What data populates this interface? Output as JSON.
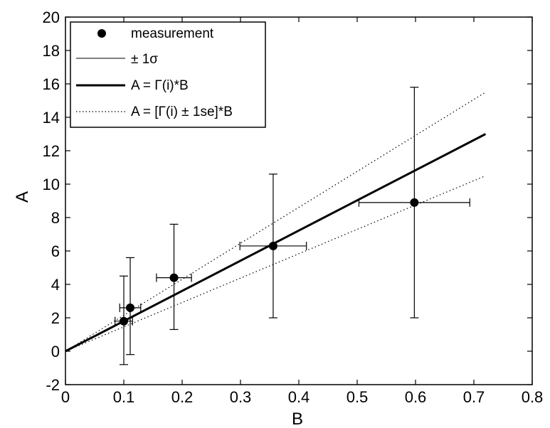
{
  "chart_data": {
    "type": "scatter",
    "title": "",
    "xlabel": "B",
    "ylabel": "A",
    "xlim": [
      0,
      0.8
    ],
    "ylim": [
      -2,
      20
    ],
    "xticks": [
      0,
      0.1,
      0.2,
      0.3,
      0.4,
      0.5,
      0.6,
      0.7,
      0.8
    ],
    "xtick_labels": [
      "0",
      "0.1",
      "0.2",
      "0.3",
      "0.4",
      "0.5",
      "0.6",
      "0.7",
      "0.8"
    ],
    "yticks": [
      -2,
      0,
      2,
      4,
      6,
      8,
      10,
      12,
      14,
      16,
      18,
      20
    ],
    "ytick_labels": [
      "-2",
      "0",
      "2",
      "4",
      "6",
      "8",
      "10",
      "12",
      "14",
      "16",
      "18",
      "20"
    ],
    "grid": false,
    "legend_position": "top-left",
    "legend": [
      {
        "label": "measurement",
        "style": "marker"
      },
      {
        "label": "± 1σ",
        "style": "thin"
      },
      {
        "label": "A = Γ(i)*B",
        "style": "thick"
      },
      {
        "label": "A = [Γ(i) ± 1se]*B",
        "style": "dotted"
      }
    ],
    "measurements": [
      {
        "x": 0.1,
        "y": 1.8,
        "xerr": 0.015,
        "yerr_low": 2.6,
        "yerr_high": 2.7
      },
      {
        "x": 0.111,
        "y": 2.6,
        "xerr": 0.018,
        "yerr_low": 2.8,
        "yerr_high": 3.0
      },
      {
        "x": 0.186,
        "y": 4.4,
        "xerr": 0.03,
        "yerr_low": 3.1,
        "yerr_high": 3.2
      },
      {
        "x": 0.356,
        "y": 6.3,
        "xerr": 0.057,
        "yerr_low": 4.3,
        "yerr_high": 4.3
      },
      {
        "x": 0.598,
        "y": 8.9,
        "xerr": 0.095,
        "yerr_low": 6.9,
        "yerr_high": 6.9
      }
    ],
    "fit_lines": [
      {
        "label": "A = Γ(i)*B",
        "style": "thick",
        "x": [
          0,
          0.72
        ],
        "y": [
          0,
          13.0
        ]
      },
      {
        "label": "A = [Γ(i) + 1se]*B",
        "style": "dotted",
        "x": [
          0,
          0.72
        ],
        "y": [
          0,
          15.5
        ]
      },
      {
        "label": "A = [Γ(i) - 1se]*B",
        "style": "dotted",
        "x": [
          0,
          0.72
        ],
        "y": [
          0,
          10.5
        ]
      }
    ],
    "colors": {
      "foreground": "#000000",
      "background": "#ffffff"
    }
  }
}
